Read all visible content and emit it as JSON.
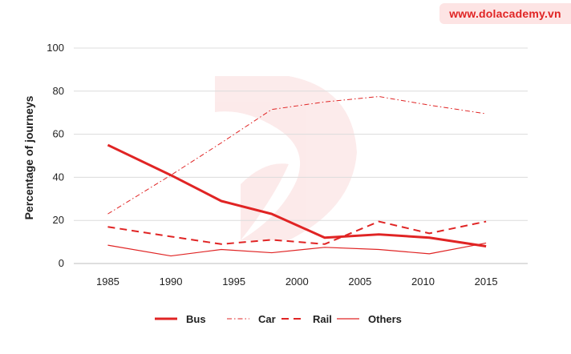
{
  "watermark": {
    "text": "www.dolacademy.vn",
    "color": "#e02424",
    "bg": "#fde4e4"
  },
  "chart_data": {
    "type": "line",
    "title": "",
    "xlabel": "",
    "ylabel": "Percentage of journeys",
    "x_ticks": [
      "1985",
      "1990",
      "1995",
      "2000",
      "2005",
      "2010",
      "2015"
    ],
    "y_ticks": [
      "0",
      "20",
      "40",
      "60",
      "80",
      "100"
    ],
    "xlim": [
      1982.3,
      2018.3
    ],
    "ylim": [
      0,
      100
    ],
    "grid": "horizontal",
    "legend_position": "bottom",
    "series": [
      {
        "name": "Bus",
        "style": "solid-thick",
        "color": "#e02424",
        "x": [
          1985,
          1990,
          1994,
          1998,
          2002.2,
          2006.5,
          2010.5,
          2015
        ],
        "y": [
          55,
          41,
          29,
          23,
          12,
          13.5,
          12,
          8
        ]
      },
      {
        "name": "Car",
        "style": "dashdot-thin",
        "color": "#e02424",
        "x": [
          1985,
          1990,
          1994,
          1998,
          2002.2,
          2006.5,
          2010.5,
          2015
        ],
        "y": [
          23,
          41,
          56,
          71.5,
          75,
          77.5,
          73.5,
          69.5
        ]
      },
      {
        "name": "Rail",
        "style": "dashed-medium",
        "color": "#e02424",
        "x": [
          1985,
          1990,
          1994,
          1998,
          2002.2,
          2006.5,
          2010.5,
          2015
        ],
        "y": [
          17,
          12.5,
          9,
          11,
          9,
          19.5,
          14,
          19.5
        ]
      },
      {
        "name": "Others",
        "style": "solid-thin",
        "color": "#e02424",
        "x": [
          1985,
          1990,
          1994,
          1998,
          2002.2,
          2006.5,
          2010.5,
          2015
        ],
        "y": [
          8.5,
          3.5,
          6.5,
          5,
          7.5,
          6.5,
          4.5,
          9.5
        ]
      }
    ]
  }
}
